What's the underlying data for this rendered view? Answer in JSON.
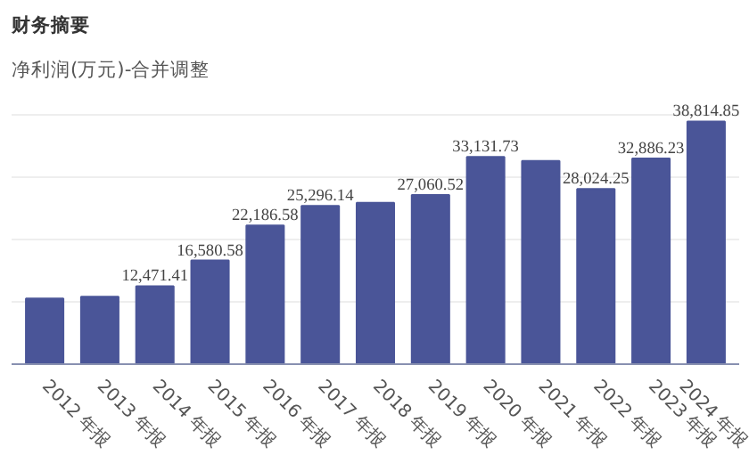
{
  "chart_data": {
    "type": "bar",
    "title": "财务摘要",
    "subtitle": "净利润(万元)-合并调整",
    "categories": [
      "2012 年报",
      "2013 年报",
      "2014 年报",
      "2015 年报",
      "2016 年报",
      "2017 年报",
      "2018 年报",
      "2019 年报",
      "2020 年报",
      "2021 年报",
      "2022 年报",
      "2023 年报",
      "2024 年报"
    ],
    "values": [
      10500,
      10800,
      12471.41,
      16580.58,
      22186.58,
      25296.14,
      25800,
      27060.52,
      33131.73,
      32500,
      28024.25,
      32886.23,
      38814.85
    ],
    "value_labels": [
      null,
      null,
      "12,471.41",
      "16,580.58",
      "22,186.58",
      "25,296.14",
      null,
      "27,060.52",
      "33,131.73",
      null,
      "28,024.25",
      "32,886.23",
      "38,814.85"
    ],
    "color": "#4a5598",
    "grid": "y",
    "tick_labels": "x"
  }
}
